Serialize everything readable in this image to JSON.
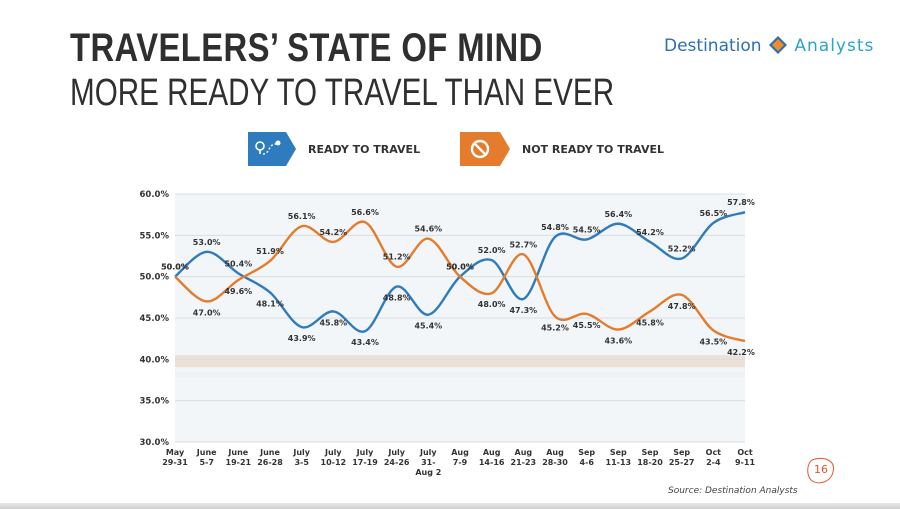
{
  "slide": {
    "title_line1": "TRAVELERS’ STATE OF MIND",
    "title_line2": "MORE READY TO TRAVEL THAN EVER",
    "brand_part1": "Destination",
    "brand_part2": "Analysts",
    "page_number": "16",
    "source": "Source: Destination Analysts"
  },
  "colors": {
    "ready": "#2e7bbd",
    "not_ready": "#e47c2c"
  },
  "chart_data": {
    "type": "line",
    "categories": [
      [
        "May",
        "29-31"
      ],
      [
        "June",
        "5-7"
      ],
      [
        "June",
        "19-21"
      ],
      [
        "June",
        "26-28"
      ],
      [
        "July",
        "3-5"
      ],
      [
        "July",
        "10-12"
      ],
      [
        "July",
        "17-19"
      ],
      [
        "July",
        "24-26"
      ],
      [
        "July",
        "31-",
        "Aug 2"
      ],
      [
        "Aug",
        "7-9"
      ],
      [
        "Aug",
        "14-16"
      ],
      [
        "Aug",
        "21-23"
      ],
      [
        "Aug",
        "28-30"
      ],
      [
        "Sep",
        "4-6"
      ],
      [
        "Sep",
        "11-13"
      ],
      [
        "Sep",
        "18-20"
      ],
      [
        "Sep",
        "25-27"
      ],
      [
        "Oct",
        "2-4"
      ],
      [
        "Oct",
        "9-11"
      ]
    ],
    "series": [
      {
        "name": "READY TO TRAVEL",
        "icon": "map-route-icon",
        "values": [
          50.0,
          53.0,
          50.4,
          48.1,
          43.9,
          45.8,
          43.4,
          48.8,
          45.4,
          50.0,
          52.0,
          47.3,
          54.8,
          54.5,
          56.4,
          54.2,
          52.2,
          56.5,
          57.8
        ],
        "labels": [
          "50.0%",
          "53.0%",
          "50.4%",
          "48.1%",
          "43.9%",
          "45.8%",
          "43.4%",
          "48.8%",
          "45.4%",
          "50.0%",
          "52.0%",
          "47.3%",
          "54.8%",
          "54.5%",
          "56.4%",
          "54.2%",
          "52.2%",
          "56.5%",
          "57.8%"
        ]
      },
      {
        "name": "NOT READY TO TRAVEL",
        "icon": "no-entry-icon",
        "values": [
          50.0,
          47.0,
          49.6,
          51.9,
          56.1,
          54.2,
          56.6,
          51.2,
          54.6,
          50.0,
          48.0,
          52.7,
          45.2,
          45.5,
          43.6,
          45.8,
          47.8,
          43.5,
          42.2
        ],
        "labels": [
          "50.0%",
          "47.0%",
          "49.6%",
          "51.9%",
          "56.1%",
          "54.2%",
          "56.6%",
          "51.2%",
          "54.6%",
          "50.0%",
          "48.0%",
          "52.7%",
          "45.2%",
          "45.5%",
          "43.6%",
          "45.8%",
          "47.8%",
          "43.5%",
          "42.2%"
        ]
      }
    ],
    "yticks": [
      "60.0%",
      "55.0%",
      "50.0%",
      "45.0%",
      "40.0%",
      "35.0%",
      "30.0%"
    ],
    "ylim": [
      30,
      60
    ],
    "grid": true,
    "legend": "top"
  }
}
